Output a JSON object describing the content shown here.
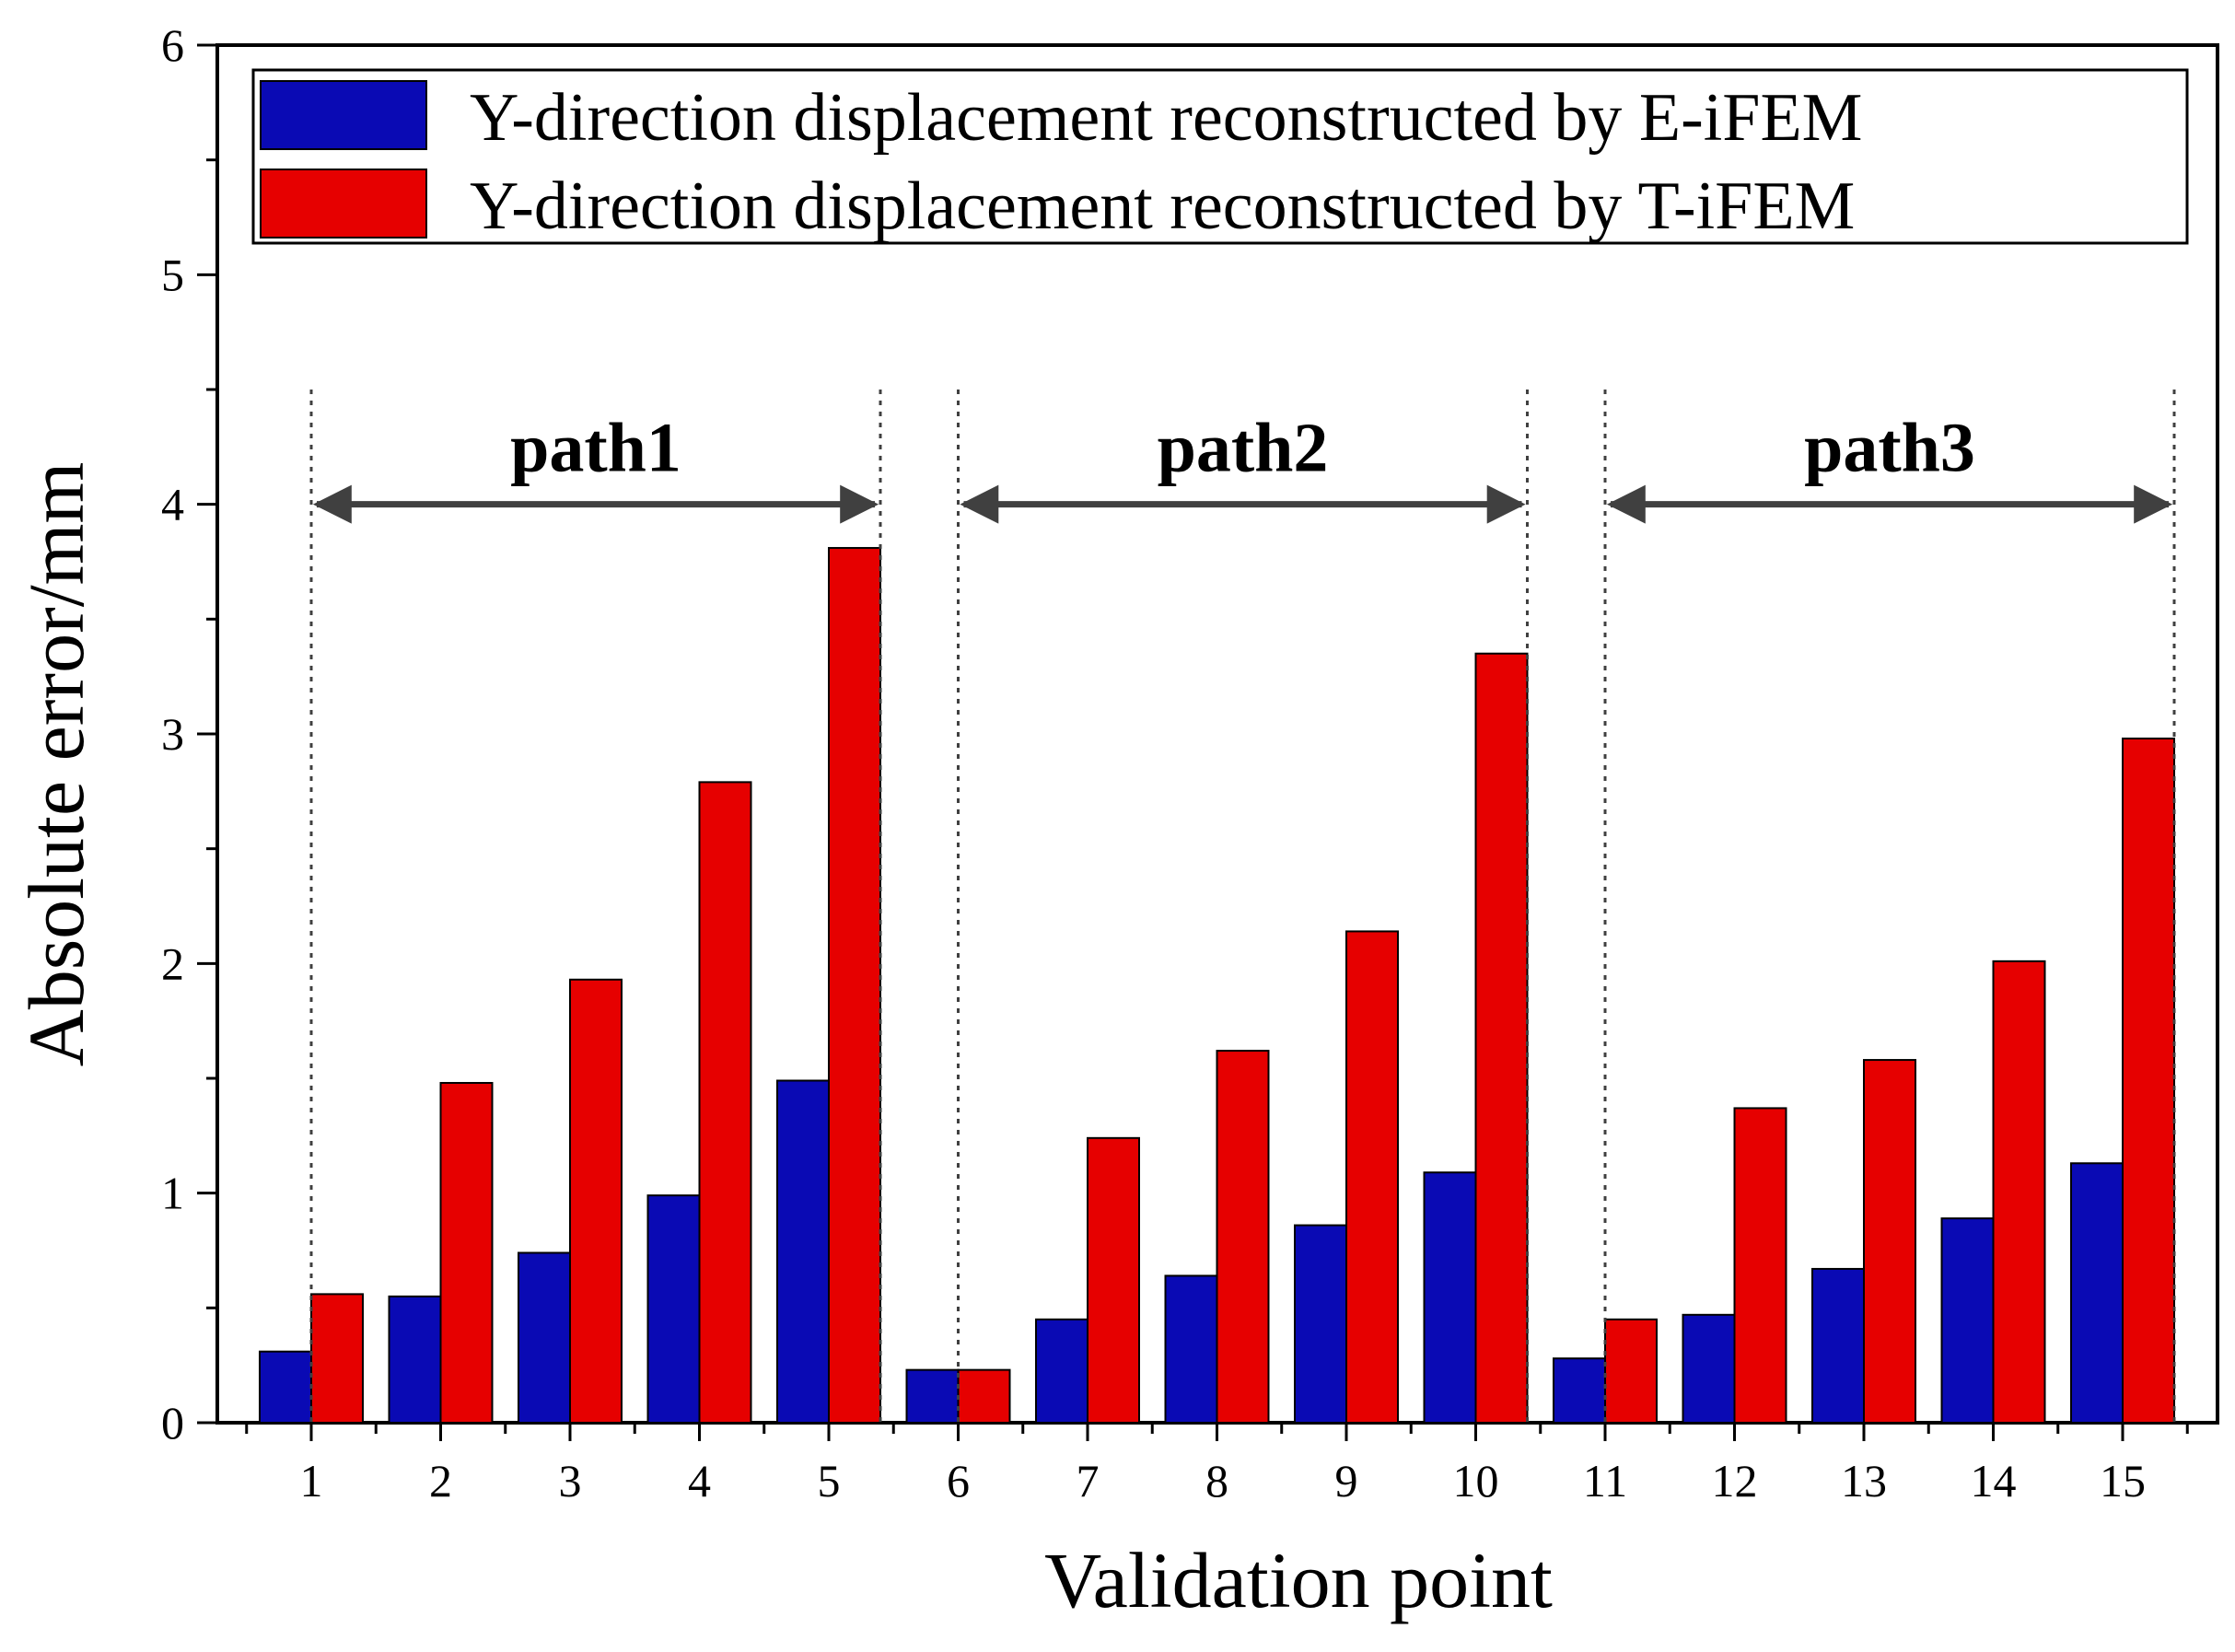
{
  "chart_data": {
    "type": "bar",
    "title": "",
    "xlabel": "Validation point",
    "ylabel": "Absolute error/mm",
    "ylim": [
      0,
      6
    ],
    "yticks": [
      0,
      1,
      2,
      3,
      4,
      5,
      6
    ],
    "categories": [
      "1",
      "2",
      "3",
      "4",
      "5",
      "6",
      "7",
      "8",
      "9",
      "10",
      "11",
      "12",
      "13",
      "14",
      "15"
    ],
    "series": [
      {
        "name": "Y-direction displacement reconstructed by E-iFEM",
        "color": "#0a0ab4",
        "values": [
          0.31,
          0.55,
          0.74,
          0.99,
          1.49,
          0.23,
          0.45,
          0.64,
          0.86,
          1.09,
          0.28,
          0.47,
          0.67,
          0.89,
          1.13
        ]
      },
      {
        "name": "Y-direction displacement reconstructed by T-iFEM",
        "color": "#e60000",
        "values": [
          0.56,
          1.48,
          1.93,
          2.79,
          3.81,
          0.23,
          1.24,
          1.62,
          2.14,
          3.35,
          0.45,
          1.37,
          1.58,
          2.01,
          2.98
        ]
      }
    ],
    "legend_position": "top",
    "annotations": [
      {
        "label": "path1",
        "from_point": 1,
        "to_point": 5
      },
      {
        "label": "path2",
        "from_point": 6,
        "to_point": 10
      },
      {
        "label": "path3",
        "from_point": 11,
        "to_point": 15
      }
    ]
  }
}
